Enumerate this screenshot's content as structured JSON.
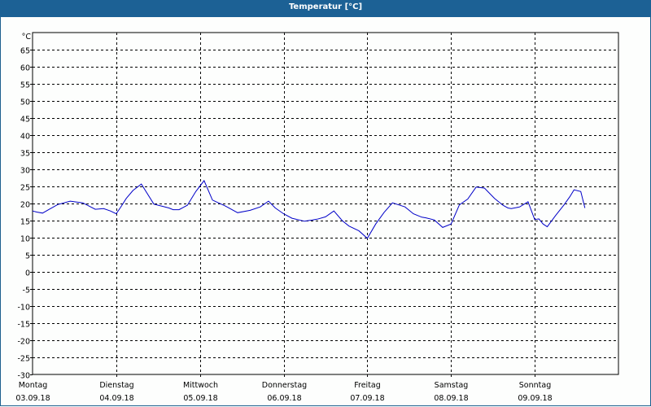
{
  "window": {
    "title": "Temperatur [°C]"
  },
  "chart_data": {
    "type": "line",
    "title": "Temperatur [°C]",
    "ylabel": "°C",
    "xlabel": "",
    "ylim": [
      -30,
      70
    ],
    "yticks": [
      65,
      60,
      55,
      50,
      45,
      40,
      35,
      30,
      25,
      20,
      15,
      10,
      5,
      0,
      -5,
      -10,
      -15,
      -20,
      -25,
      -30
    ],
    "grid": true,
    "legend": "none",
    "x_categories": [
      {
        "day": "Montag",
        "date": "03.09.18"
      },
      {
        "day": "Dienstag",
        "date": "04.09.18"
      },
      {
        "day": "Mittwoch",
        "date": "05.09.18"
      },
      {
        "day": "Donnerstag",
        "date": "06.09.18"
      },
      {
        "day": "Freitag",
        "date": "07.09.18"
      },
      {
        "day": "Samstag",
        "date": "08.09.18"
      },
      {
        "day": "Sonntag",
        "date": "09.09.18"
      }
    ],
    "series": [
      {
        "name": "Temperatur",
        "color": "#0000c8",
        "x_days": [
          0,
          0.05,
          0.12,
          0.2,
          0.3,
          0.45,
          0.6,
          0.75,
          0.85,
          0.93,
          1.0,
          1.05,
          1.12,
          1.2,
          1.3,
          1.45,
          1.55,
          1.63,
          1.68,
          1.75,
          1.85,
          1.95,
          2.05,
          2.15,
          2.3,
          2.45,
          2.6,
          2.72,
          2.82,
          2.9,
          3.0,
          3.1,
          3.25,
          3.4,
          3.5,
          3.6,
          3.7,
          3.78,
          3.9,
          4.0,
          4.1,
          4.2,
          4.3,
          4.45,
          4.55,
          4.65,
          4.7,
          4.8,
          4.9,
          5.0,
          5.1,
          5.2,
          5.3,
          5.4,
          5.52,
          5.62,
          5.68,
          5.72,
          5.82,
          5.92,
          6.0,
          6.05,
          6.1,
          6.15,
          6.25,
          6.35,
          6.42,
          6.47,
          6.55,
          6.6
        ],
        "values": [
          17.8,
          17.5,
          17.2,
          18.3,
          19.7,
          20.7,
          20.2,
          18.3,
          18.5,
          17.8,
          17.0,
          18.8,
          21.5,
          23.8,
          25.7,
          19.8,
          19.2,
          18.7,
          18.2,
          18.2,
          19.5,
          23.5,
          26.7,
          21.0,
          19.3,
          17.3,
          18.0,
          19.0,
          20.7,
          18.7,
          17.0,
          15.7,
          14.8,
          15.4,
          16.1,
          17.8,
          15.0,
          13.4,
          12.0,
          9.8,
          14.0,
          17.4,
          20.2,
          19.0,
          17.0,
          16.0,
          15.8,
          15.2,
          13.0,
          14.0,
          19.6,
          21.3,
          24.8,
          24.5,
          21.5,
          19.5,
          18.7,
          18.5,
          19.0,
          20.5,
          15.3,
          15.5,
          14.0,
          13.2,
          16.5,
          19.6,
          22.0,
          24.0,
          23.5,
          18.7
        ]
      }
    ]
  }
}
